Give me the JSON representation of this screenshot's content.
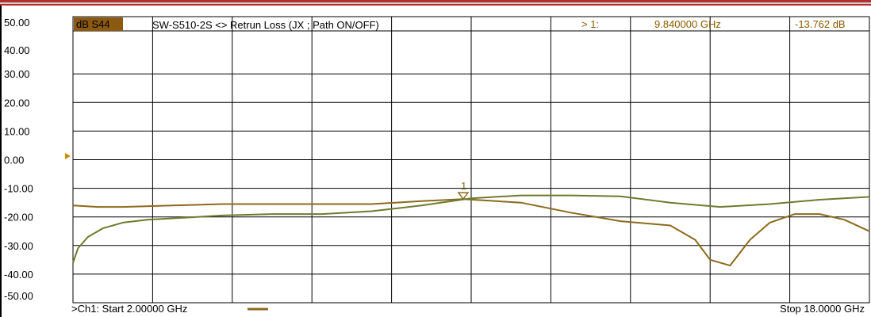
{
  "header": {
    "trace_label": "dB S44",
    "title": "SW-S510-2S <> Retrun Loss (JX ; Path ON/OFF)",
    "marker_label": "> 1:",
    "marker_freq": "9.840000 GHz",
    "marker_value": "-13.762 dB"
  },
  "footer": {
    "start": ">Ch1: Start  2.00000 GHz",
    "stop": "Stop  18.0000 GHz"
  },
  "colors": {
    "trace_gold": "#8b6a1c",
    "trace_olive": "#6e7a30",
    "header_text": "#8b5a00",
    "grid": "#000000"
  },
  "chart_data": {
    "type": "line",
    "xlim": [
      2.0,
      18.0
    ],
    "ylim": [
      -50,
      50
    ],
    "yticks": [
      "50.00",
      "40.00",
      "30.00",
      "20.00",
      "10.00",
      "0.00",
      "-10.00",
      "-20.00",
      "-30.00",
      "-40.00",
      "-50.00"
    ],
    "reference_level": 0,
    "grid": true,
    "marker": {
      "label": "1",
      "x": 9.84,
      "y": -13.762
    },
    "series": [
      {
        "color": "#8b6a1c",
        "x": [
          2.0,
          2.5,
          3.0,
          4.0,
          5.0,
          6.0,
          7.0,
          8.0,
          9.0,
          9.84,
          10.5,
          11.0,
          12.0,
          13.0,
          14.0,
          14.5,
          14.8,
          15.2,
          15.6,
          16.0,
          16.5,
          17.0,
          17.5,
          18.0
        ],
        "y": [
          -16.0,
          -16.5,
          -16.5,
          -16.0,
          -15.5,
          -15.5,
          -15.5,
          -15.5,
          -14.5,
          -13.8,
          -14.5,
          -15.0,
          -18.5,
          -21.5,
          -23.0,
          -28.0,
          -35.0,
          -37.0,
          -28.0,
          -22.0,
          -19.0,
          -19.0,
          -21.0,
          -25.0
        ]
      },
      {
        "color": "#6e7a30",
        "x": [
          2.0,
          2.1,
          2.3,
          2.6,
          3.0,
          3.5,
          4.0,
          5.0,
          6.0,
          7.0,
          8.0,
          9.0,
          10.0,
          11.0,
          12.0,
          13.0,
          14.0,
          15.0,
          16.0,
          17.0,
          18.0
        ],
        "y": [
          -36.0,
          -31.0,
          -27.0,
          -24.0,
          -22.0,
          -21.0,
          -20.5,
          -19.5,
          -19.0,
          -19.0,
          -18.0,
          -16.0,
          -13.5,
          -12.5,
          -12.5,
          -12.8,
          -15.0,
          -16.5,
          -15.5,
          -14.0,
          -13.0
        ]
      }
    ]
  }
}
